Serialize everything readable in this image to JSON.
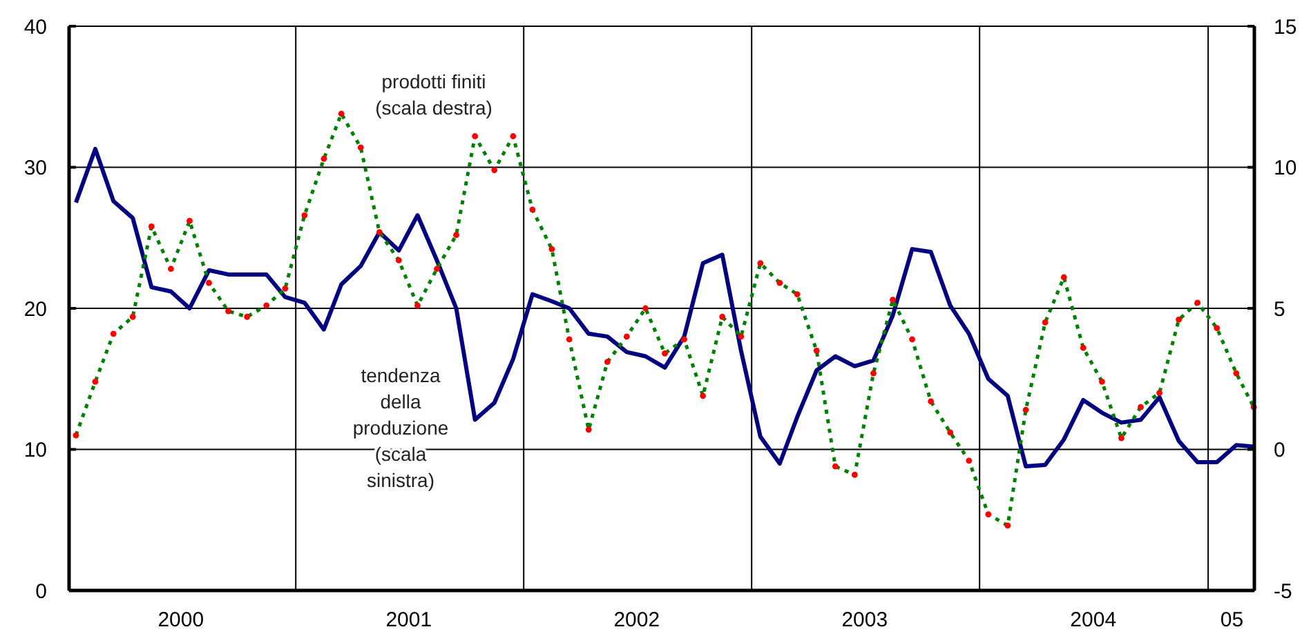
{
  "chart_data": {
    "type": "line",
    "x": [
      "2000-01-15",
      "2000-02-15",
      "2000-03-15",
      "2000-04-15",
      "2000-05-15",
      "2000-06-15",
      "2000-07-15",
      "2000-08-15",
      "2000-09-15",
      "2000-10-15",
      "2000-11-15",
      "2000-12-15",
      "2001-01-15",
      "2001-02-15",
      "2001-03-15",
      "2001-04-15",
      "2001-05-15",
      "2001-06-15",
      "2001-07-15",
      "2001-08-15",
      "2001-09-15",
      "2001-10-15",
      "2001-11-15",
      "2001-12-15",
      "2002-01-15",
      "2002-02-15",
      "2002-03-15",
      "2002-04-15",
      "2002-05-15",
      "2002-06-15",
      "2002-07-15",
      "2002-08-15",
      "2002-09-15",
      "2002-10-15",
      "2002-11-15",
      "2002-12-15",
      "2003-01-15",
      "2003-02-15",
      "2003-03-15",
      "2003-04-15",
      "2003-05-15",
      "2003-06-15",
      "2003-07-15",
      "2003-08-15",
      "2003-09-15",
      "2003-10-15",
      "2003-11-15",
      "2003-12-15",
      "2004-01-15",
      "2004-02-15",
      "2004-03-15",
      "2004-04-15",
      "2004-05-15",
      "2004-06-15",
      "2004-07-15",
      "2004-08-15",
      "2004-09-15",
      "2004-10-15",
      "2004-11-15",
      "2004-12-15",
      "2005-01-15",
      "2005-02-15",
      "2005-03-15"
    ],
    "series": [
      {
        "name": "tendenza della produzione (scala sinistra)",
        "color": "#000080",
        "line_style": "solid",
        "values": [
          27.5,
          31.3,
          27.6,
          26.4,
          21.5,
          21.2,
          20.0,
          22.7,
          22.4,
          22.4,
          22.4,
          20.8,
          20.4,
          18.5,
          21.7,
          23.0,
          25.4,
          24.1,
          26.6,
          23.4,
          20.0,
          12.1,
          13.3,
          16.4,
          21.0,
          20.5,
          20.0,
          18.2,
          18.0,
          16.9,
          16.6,
          15.8,
          18.0,
          23.2,
          23.8,
          17.0,
          10.9,
          9.0,
          12.3,
          15.6,
          16.6,
          15.9,
          16.3,
          19.5,
          24.2,
          24.0,
          20.2,
          18.2,
          15.0,
          13.8,
          8.8,
          8.9,
          10.7,
          13.5,
          12.6,
          11.9,
          12.1,
          13.7,
          10.6,
          9.1,
          9.1,
          10.3,
          10.2
        ]
      },
      {
        "name": "prodotti finiti (scala destra)",
        "color": "#008000",
        "axis": "y2",
        "line_style": "dotted",
        "values": [
          0.5,
          2.4,
          4.1,
          4.7,
          7.9,
          6.4,
          8.1,
          5.9,
          4.9,
          4.7,
          5.1,
          5.7,
          8.3,
          10.3,
          11.9,
          10.7,
          7.7,
          6.7,
          5.1,
          6.4,
          7.6,
          11.1,
          9.9,
          11.1,
          8.5,
          7.1,
          3.9,
          0.7,
          3.1,
          4.0,
          5.0,
          3.4,
          3.9,
          1.9,
          4.7,
          4.0,
          6.6,
          5.9,
          5.5,
          3.5,
          -0.6,
          -0.9,
          2.7,
          5.3,
          3.9,
          1.7,
          0.6,
          -0.4,
          -2.3,
          -2.7,
          1.4,
          4.5,
          6.1,
          3.6,
          2.4,
          0.4,
          1.5,
          2.0,
          4.6,
          5.2,
          4.3,
          2.7,
          1.5
        ]
      },
      {
        "type": "scatter",
        "color": "#ff0000",
        "axis": "y2",
        "marker": "circle",
        "values": [
          0.5,
          2.4,
          4.1,
          4.7,
          7.9,
          6.4,
          8.1,
          5.9,
          4.9,
          4.7,
          5.1,
          5.7,
          8.3,
          10.3,
          11.9,
          10.7,
          7.7,
          6.7,
          5.1,
          6.4,
          7.6,
          11.1,
          9.9,
          11.1,
          8.5,
          7.1,
          3.9,
          0.7,
          3.1,
          4.0,
          5.0,
          3.4,
          3.9,
          1.9,
          4.7,
          4.0,
          6.6,
          5.9,
          5.5,
          3.5,
          -0.6,
          -0.9,
          2.7,
          5.3,
          3.9,
          1.7,
          0.6,
          -0.4,
          -2.3,
          -2.7,
          1.4,
          4.5,
          6.1,
          3.6,
          2.4,
          0.4,
          1.5,
          2.0,
          4.6,
          5.2,
          4.3,
          2.7,
          1.5
        ]
      }
    ],
    "xlim": [
      "2000-01-04",
      "2005-03-16"
    ],
    "xticks": [
      {
        "value": "2000-07-01",
        "label": "2000"
      },
      {
        "value": "2001-07-01",
        "label": "2001"
      },
      {
        "value": "2002-07-01",
        "label": "2002"
      },
      {
        "value": "2003-07-01",
        "label": "2003"
      },
      {
        "value": "2004-07-01",
        "label": "2004"
      },
      {
        "value": "2005-02-08",
        "label": "05"
      }
    ],
    "ylim": [
      0,
      40
    ],
    "yticks": [
      0,
      10,
      20,
      30,
      40
    ],
    "y2lim": [
      -5,
      15
    ],
    "y2ticks": [
      -5,
      0,
      5,
      10,
      15
    ],
    "ref_lines": [
      {
        "axis": "x",
        "value": "2001-01-01"
      },
      {
        "axis": "x",
        "value": "2002-01-01"
      },
      {
        "axis": "x",
        "value": "2003-01-01"
      },
      {
        "axis": "x",
        "value": "2004-01-01"
      },
      {
        "axis": "x",
        "value": "2005-01-01"
      }
    ],
    "grid": "y"
  }
}
